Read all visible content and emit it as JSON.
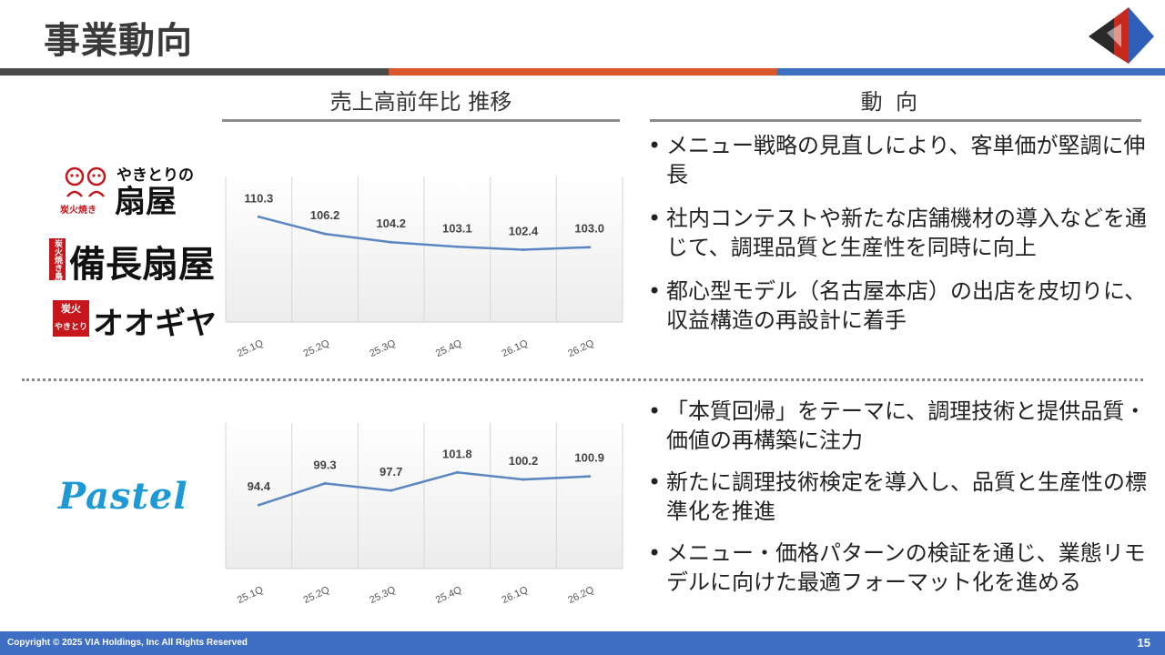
{
  "header": {
    "title": "事業動向"
  },
  "columns": {
    "left_heading": "売上高前年比 推移",
    "right_heading": "動向"
  },
  "brands": {
    "ougiya_kana": "やきとりの",
    "ougiya_name": "扇屋",
    "ougiya_small": "炭火焼き",
    "bincho_tag": "炭火焼き鳥",
    "bincho_name": "備長扇屋",
    "oogiya_badge_1": "炭火",
    "oogiya_badge_2": "やきとり",
    "oogiya_name": "オオギヤ",
    "pastel_name": "Pastel"
  },
  "chart_data": [
    {
      "type": "line",
      "categories": [
        "25.1Q",
        "25.2Q",
        "25.3Q",
        "25.4Q",
        "26.1Q",
        "26.2Q"
      ],
      "series": [
        {
          "values": [
            110.3,
            106.2,
            104.2,
            103.1,
            102.4,
            103.0
          ]
        }
      ],
      "value_labels": [
        "110.3",
        "106.2",
        "104.2",
        "103.1",
        "102.4",
        "103.0"
      ],
      "ylim": [
        85,
        120
      ],
      "grid": "vertical",
      "line_color": "#5b86c2"
    },
    {
      "type": "line",
      "categories": [
        "25.1Q",
        "25.2Q",
        "25.3Q",
        "25.4Q",
        "26.1Q",
        "26.2Q"
      ],
      "series": [
        {
          "values": [
            94.4,
            99.3,
            97.7,
            101.8,
            100.2,
            100.9
          ]
        }
      ],
      "value_labels": [
        "94.4",
        "99.3",
        "97.7",
        "101.8",
        "100.2",
        "100.9"
      ],
      "ylim": [
        80,
        113
      ],
      "grid": "vertical",
      "line_color": "#5b86c2"
    }
  ],
  "bullets_top": [
    "メニュー戦略の見直しにより、客単価が堅調に伸長",
    "社内コンテストや新たな店舗機材の導入などを通じて、調理品質と生産性を同時に向上",
    "都心型モデル（名古屋本店）の出店を皮切りに、収益構造の再設計に着手"
  ],
  "bullets_bottom": [
    "「本質回帰」をテーマに、調理技術と提供品質・価値の再構築に注力",
    "新たに調理技術検定を導入し、品質と生産性の標準化を推進",
    "メニュー・価格パターンの検証を通じ、業態リモデルに向けた最適フォーマット化を進める"
  ],
  "footer": {
    "copyright": "Copyright © 2025 VIA Holdings, Inc All Rights Reserved",
    "page_number": "15"
  }
}
